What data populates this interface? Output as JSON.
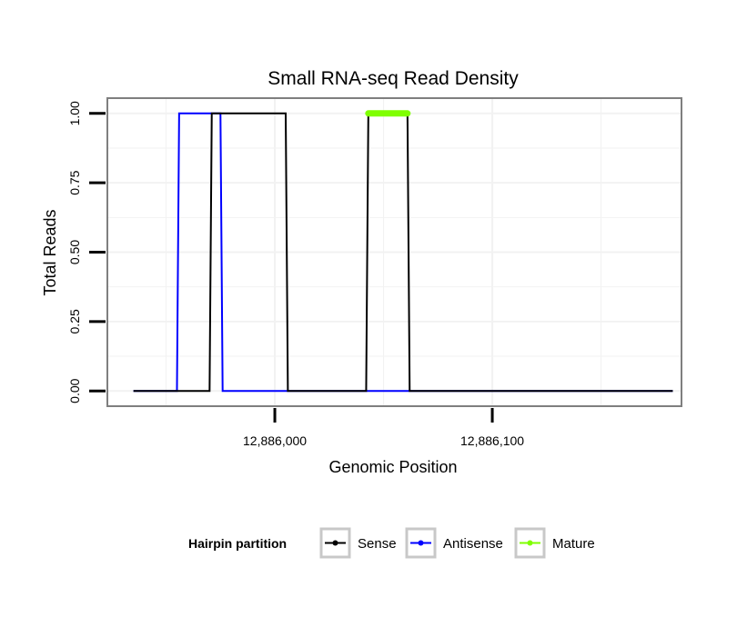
{
  "chart_data": {
    "type": "line",
    "title": "Small RNA-seq Read Density",
    "xlabel": "Genomic Position",
    "ylabel": "Total Reads",
    "xlim": [
      12885923,
      12886187
    ],
    "ylim": [
      -0.055,
      1.055
    ],
    "x_ticks": [
      12886000,
      12886100
    ],
    "x_tick_labels": [
      "12,886,000",
      "12,886,100"
    ],
    "y_ticks": [
      0,
      0.25,
      0.5,
      0.75,
      1
    ],
    "y_tick_labels": [
      "0.00",
      "0.25",
      "0.50",
      "0.75",
      "1.00"
    ],
    "grid": true,
    "legend": {
      "position": "bottom",
      "title": "Hairpin partition",
      "entries": [
        "Sense",
        "Antisense",
        "Mature"
      ]
    },
    "colors": {
      "Sense": "#000000",
      "Antisense": "#0000ff",
      "Mature": "#7fff00",
      "panel_border": "#7f7f7f",
      "grid": "#f2f2f2"
    },
    "series": [
      {
        "name": "Sense",
        "x": [
          12885935,
          12885970,
          12885971,
          12885986,
          12885987,
          12886005,
          12886006,
          12886042,
          12886043,
          12886061,
          12886062,
          12886183
        ],
        "y": [
          0,
          0,
          1,
          1,
          1,
          1,
          0,
          0,
          1,
          1,
          0,
          0
        ]
      },
      {
        "name": "Antisense",
        "x": [
          12885935,
          12885955,
          12885956,
          12885970,
          12885971,
          12885975,
          12885976,
          12886062,
          12886183
        ],
        "y": [
          0,
          0,
          1,
          1,
          1,
          1,
          0,
          0,
          0
        ]
      },
      {
        "name": "Mature",
        "x": [
          12886043,
          12886061
        ],
        "y": [
          1,
          1
        ]
      }
    ]
  }
}
